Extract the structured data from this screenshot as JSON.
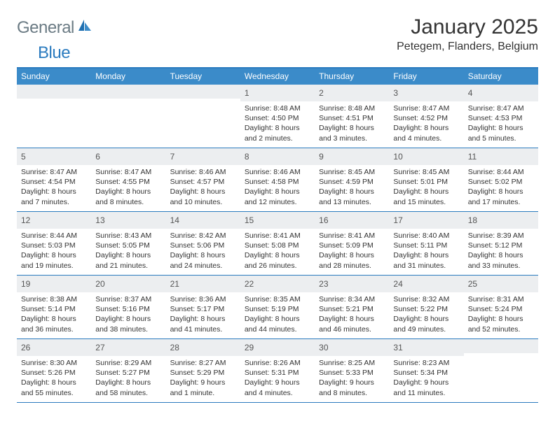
{
  "logo": {
    "text1": "General",
    "text2": "Blue"
  },
  "title": "January 2025",
  "location": "Petegem, Flanders, Belgium",
  "colors": {
    "header_bar": "#3b8bc9",
    "accent_line": "#2b7bbf",
    "daynum_bg": "#eceef0",
    "text": "#333333",
    "logo_gray": "#6b7b84",
    "logo_blue": "#2b7bbf"
  },
  "day_names": [
    "Sunday",
    "Monday",
    "Tuesday",
    "Wednesday",
    "Thursday",
    "Friday",
    "Saturday"
  ],
  "weeks": [
    [
      null,
      null,
      null,
      {
        "n": "1",
        "sr": "8:48 AM",
        "ss": "4:50 PM",
        "dl": "8 hours and 2 minutes."
      },
      {
        "n": "2",
        "sr": "8:48 AM",
        "ss": "4:51 PM",
        "dl": "8 hours and 3 minutes."
      },
      {
        "n": "3",
        "sr": "8:47 AM",
        "ss": "4:52 PM",
        "dl": "8 hours and 4 minutes."
      },
      {
        "n": "4",
        "sr": "8:47 AM",
        "ss": "4:53 PM",
        "dl": "8 hours and 5 minutes."
      }
    ],
    [
      {
        "n": "5",
        "sr": "8:47 AM",
        "ss": "4:54 PM",
        "dl": "8 hours and 7 minutes."
      },
      {
        "n": "6",
        "sr": "8:47 AM",
        "ss": "4:55 PM",
        "dl": "8 hours and 8 minutes."
      },
      {
        "n": "7",
        "sr": "8:46 AM",
        "ss": "4:57 PM",
        "dl": "8 hours and 10 minutes."
      },
      {
        "n": "8",
        "sr": "8:46 AM",
        "ss": "4:58 PM",
        "dl": "8 hours and 12 minutes."
      },
      {
        "n": "9",
        "sr": "8:45 AM",
        "ss": "4:59 PM",
        "dl": "8 hours and 13 minutes."
      },
      {
        "n": "10",
        "sr": "8:45 AM",
        "ss": "5:01 PM",
        "dl": "8 hours and 15 minutes."
      },
      {
        "n": "11",
        "sr": "8:44 AM",
        "ss": "5:02 PM",
        "dl": "8 hours and 17 minutes."
      }
    ],
    [
      {
        "n": "12",
        "sr": "8:44 AM",
        "ss": "5:03 PM",
        "dl": "8 hours and 19 minutes."
      },
      {
        "n": "13",
        "sr": "8:43 AM",
        "ss": "5:05 PM",
        "dl": "8 hours and 21 minutes."
      },
      {
        "n": "14",
        "sr": "8:42 AM",
        "ss": "5:06 PM",
        "dl": "8 hours and 24 minutes."
      },
      {
        "n": "15",
        "sr": "8:41 AM",
        "ss": "5:08 PM",
        "dl": "8 hours and 26 minutes."
      },
      {
        "n": "16",
        "sr": "8:41 AM",
        "ss": "5:09 PM",
        "dl": "8 hours and 28 minutes."
      },
      {
        "n": "17",
        "sr": "8:40 AM",
        "ss": "5:11 PM",
        "dl": "8 hours and 31 minutes."
      },
      {
        "n": "18",
        "sr": "8:39 AM",
        "ss": "5:12 PM",
        "dl": "8 hours and 33 minutes."
      }
    ],
    [
      {
        "n": "19",
        "sr": "8:38 AM",
        "ss": "5:14 PM",
        "dl": "8 hours and 36 minutes."
      },
      {
        "n": "20",
        "sr": "8:37 AM",
        "ss": "5:16 PM",
        "dl": "8 hours and 38 minutes."
      },
      {
        "n": "21",
        "sr": "8:36 AM",
        "ss": "5:17 PM",
        "dl": "8 hours and 41 minutes."
      },
      {
        "n": "22",
        "sr": "8:35 AM",
        "ss": "5:19 PM",
        "dl": "8 hours and 44 minutes."
      },
      {
        "n": "23",
        "sr": "8:34 AM",
        "ss": "5:21 PM",
        "dl": "8 hours and 46 minutes."
      },
      {
        "n": "24",
        "sr": "8:32 AM",
        "ss": "5:22 PM",
        "dl": "8 hours and 49 minutes."
      },
      {
        "n": "25",
        "sr": "8:31 AM",
        "ss": "5:24 PM",
        "dl": "8 hours and 52 minutes."
      }
    ],
    [
      {
        "n": "26",
        "sr": "8:30 AM",
        "ss": "5:26 PM",
        "dl": "8 hours and 55 minutes."
      },
      {
        "n": "27",
        "sr": "8:29 AM",
        "ss": "5:27 PM",
        "dl": "8 hours and 58 minutes."
      },
      {
        "n": "28",
        "sr": "8:27 AM",
        "ss": "5:29 PM",
        "dl": "9 hours and 1 minute."
      },
      {
        "n": "29",
        "sr": "8:26 AM",
        "ss": "5:31 PM",
        "dl": "9 hours and 4 minutes."
      },
      {
        "n": "30",
        "sr": "8:25 AM",
        "ss": "5:33 PM",
        "dl": "9 hours and 8 minutes."
      },
      {
        "n": "31",
        "sr": "8:23 AM",
        "ss": "5:34 PM",
        "dl": "9 hours and 11 minutes."
      },
      null
    ]
  ],
  "labels": {
    "sunrise": "Sunrise:",
    "sunset": "Sunset:",
    "daylight": "Daylight:"
  }
}
